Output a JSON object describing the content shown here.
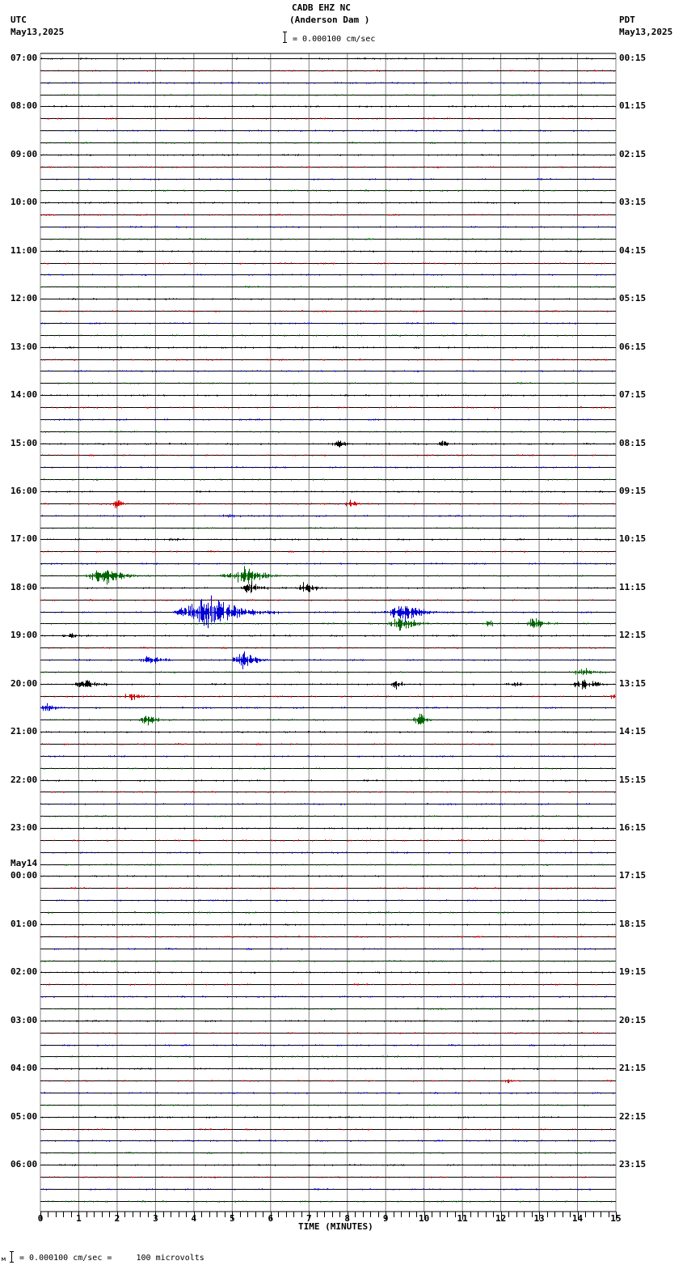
{
  "header": {
    "station": "CADB EHZ NC",
    "location": "(Anderson Dam )",
    "scale_text": "= 0.000100 cm/sec",
    "left_tz": "UTC",
    "left_date": "May13,2025",
    "right_tz": "PDT",
    "right_date": "May13,2025"
  },
  "footer": {
    "prefix": "м",
    "scale_text": "= 0.000100 cm/sec =     100 microvolts"
  },
  "colors": {
    "trace_cycle": [
      "#000000",
      "#d40000",
      "#0000d4",
      "#006400"
    ],
    "grid": "#808080",
    "baseline": "#000000"
  },
  "chart_data": {
    "type": "line",
    "title": "CADB EHZ NC (Anderson Dam )",
    "subtitle": "= 0.000100 cm/sec",
    "xlabel": "TIME (MINUTES)",
    "ylabel": "",
    "xlim": [
      0,
      15
    ],
    "x_ticks": [
      "0",
      "1",
      "2",
      "3",
      "4",
      "5",
      "6",
      "7",
      "8",
      "9",
      "10",
      "11",
      "12",
      "13",
      "14",
      "15"
    ],
    "traces_per_hour": 4,
    "trace_count": 96,
    "left_hour_labels": [
      {
        "row": 0,
        "label": "07:00"
      },
      {
        "row": 4,
        "label": "08:00"
      },
      {
        "row": 8,
        "label": "09:00"
      },
      {
        "row": 12,
        "label": "10:00"
      },
      {
        "row": 16,
        "label": "11:00"
      },
      {
        "row": 20,
        "label": "12:00"
      },
      {
        "row": 24,
        "label": "13:00"
      },
      {
        "row": 28,
        "label": "14:00"
      },
      {
        "row": 32,
        "label": "15:00"
      },
      {
        "row": 36,
        "label": "16:00"
      },
      {
        "row": 40,
        "label": "17:00"
      },
      {
        "row": 44,
        "label": "18:00"
      },
      {
        "row": 48,
        "label": "19:00"
      },
      {
        "row": 52,
        "label": "20:00"
      },
      {
        "row": 56,
        "label": "21:00"
      },
      {
        "row": 60,
        "label": "22:00"
      },
      {
        "row": 64,
        "label": "23:00"
      },
      {
        "row": 68,
        "label": "00:00",
        "date": "May14"
      },
      {
        "row": 72,
        "label": "01:00"
      },
      {
        "row": 76,
        "label": "02:00"
      },
      {
        "row": 80,
        "label": "03:00"
      },
      {
        "row": 84,
        "label": "04:00"
      },
      {
        "row": 88,
        "label": "05:00"
      },
      {
        "row": 92,
        "label": "06:00"
      }
    ],
    "right_hour_labels": [
      "00:15",
      "01:15",
      "02:15",
      "03:15",
      "04:15",
      "05:15",
      "06:15",
      "07:15",
      "08:15",
      "09:15",
      "10:15",
      "11:15",
      "12:15",
      "13:15",
      "14:15",
      "15:15",
      "16:15",
      "17:15",
      "18:15",
      "19:15",
      "20:15",
      "21:15",
      "22:15",
      "23:15"
    ],
    "events": [
      {
        "row": 0,
        "minute": 8.7,
        "amp": 1.5,
        "dur": 0.3
      },
      {
        "row": 20,
        "minute": 11.6,
        "amp": 3,
        "dur": 0.15
      },
      {
        "row": 25,
        "minute": 8.3,
        "amp": 4,
        "dur": 0.1
      },
      {
        "row": 32,
        "minute": 7.8,
        "amp": 6,
        "dur": 0.5
      },
      {
        "row": 32,
        "minute": 10.5,
        "amp": 4,
        "dur": 0.5
      },
      {
        "row": 37,
        "minute": 2.0,
        "amp": 6,
        "dur": 0.5
      },
      {
        "row": 37,
        "minute": 8.1,
        "amp": 6,
        "dur": 0.5
      },
      {
        "row": 38,
        "minute": 4.9,
        "amp": 2,
        "dur": 0.6
      },
      {
        "row": 40,
        "minute": 3.6,
        "amp": 2,
        "dur": 0.8
      },
      {
        "row": 43,
        "minute": 1.7,
        "amp": 12,
        "dur": 1.2
      },
      {
        "row": 43,
        "minute": 5.3,
        "amp": 13,
        "dur": 1.4
      },
      {
        "row": 44,
        "minute": 5.5,
        "amp": 9,
        "dur": 0.7
      },
      {
        "row": 44,
        "minute": 6.9,
        "amp": 9,
        "dur": 0.6
      },
      {
        "row": 46,
        "minute": 4.4,
        "amp": 22,
        "dur": 2.0
      },
      {
        "row": 46,
        "minute": 9.5,
        "amp": 14,
        "dur": 1.2
      },
      {
        "row": 47,
        "minute": 9.4,
        "amp": 15,
        "dur": 0.8
      },
      {
        "row": 47,
        "minute": 11.7,
        "amp": 5,
        "dur": 0.6
      },
      {
        "row": 47,
        "minute": 12.9,
        "amp": 12,
        "dur": 0.6
      },
      {
        "row": 48,
        "minute": 0.8,
        "amp": 3,
        "dur": 0.8
      },
      {
        "row": 50,
        "minute": 2.9,
        "amp": 7,
        "dur": 0.8
      },
      {
        "row": 50,
        "minute": 5.3,
        "amp": 12,
        "dur": 0.8
      },
      {
        "row": 51,
        "minute": 14.1,
        "amp": 7,
        "dur": 0.8
      },
      {
        "row": 52,
        "minute": 1.2,
        "amp": 6,
        "dur": 0.9
      },
      {
        "row": 52,
        "minute": 9.3,
        "amp": 8,
        "dur": 0.4
      },
      {
        "row": 52,
        "minute": 12.4,
        "amp": 3,
        "dur": 0.6
      },
      {
        "row": 52,
        "minute": 14.2,
        "amp": 8,
        "dur": 0.9
      },
      {
        "row": 53,
        "minute": 2.4,
        "amp": 6,
        "dur": 0.8
      },
      {
        "row": 53,
        "minute": 14.9,
        "amp": 4,
        "dur": 0.2
      },
      {
        "row": 54,
        "minute": 0.2,
        "amp": 7,
        "dur": 0.6
      },
      {
        "row": 55,
        "minute": 2.8,
        "amp": 7,
        "dur": 0.7
      },
      {
        "row": 55,
        "minute": 9.9,
        "amp": 10,
        "dur": 0.5
      },
      {
        "row": 85,
        "minute": 12.2,
        "amp": 2,
        "dur": 0.8
      }
    ]
  }
}
